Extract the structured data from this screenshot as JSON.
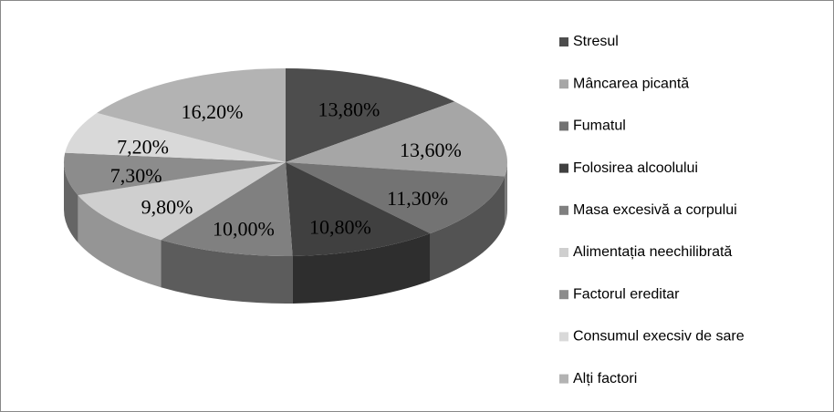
{
  "chart_data": {
    "type": "pie",
    "categories": [
      "Stresul",
      "Mâncarea picantă",
      "Fumatul",
      "Folosirea alcoolului",
      "Masa excesivă a corpului",
      "Alimentația neechilibrată",
      "Factorul ereditar",
      "Consumul execsiv de sare",
      "Alți factori"
    ],
    "values": [
      13.8,
      13.6,
      11.3,
      10.8,
      10.0,
      9.8,
      7.3,
      7.2,
      16.2
    ],
    "value_labels": [
      "13,80%",
      "13,60%",
      "11,30%",
      "10,80%",
      "10,00%",
      "9,80%",
      "7,30%",
      "7,20%",
      "16,20%"
    ],
    "colors": [
      "#4d4d4d",
      "#a6a6a6",
      "#737373",
      "#404040",
      "#808080",
      "#cfcfcf",
      "#8c8c8c",
      "#d9d9d9",
      "#b3b3b3"
    ],
    "legend": "right"
  }
}
